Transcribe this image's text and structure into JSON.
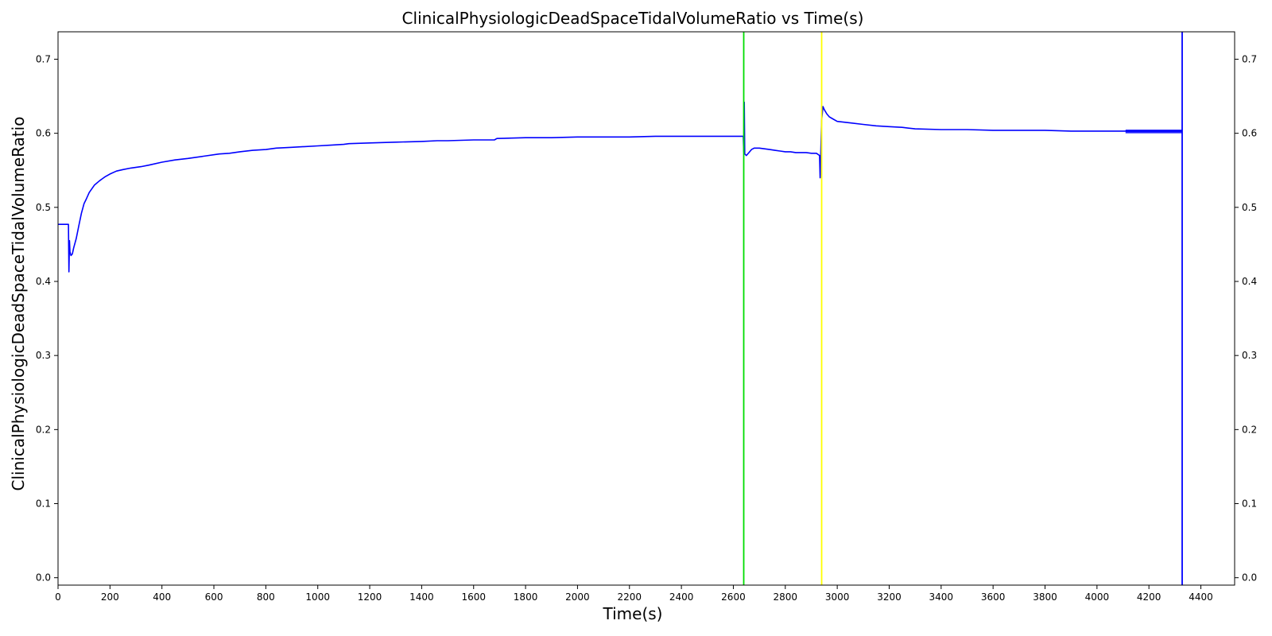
{
  "chart_data": {
    "type": "line",
    "title": "ClinicalPhysiologicDeadSpaceTidalVolumeRatio vs Time(s)",
    "xlabel": "Time(s)",
    "ylabel": "ClinicalPhysiologicDeadSpaceTidalVolumeRatio",
    "xlim": [
      0,
      4530
    ],
    "ylim": [
      -0.01,
      0.737
    ],
    "x_ticks": [
      0,
      200,
      400,
      600,
      800,
      1000,
      1200,
      1400,
      1600,
      1800,
      2000,
      2200,
      2400,
      2600,
      2800,
      3000,
      3200,
      3400,
      3600,
      3800,
      4000,
      4200,
      4400
    ],
    "x_tick_labels": [
      "0",
      "200",
      "400",
      "600",
      "800",
      "1000",
      "1200",
      "1400",
      "1600",
      "1800",
      "2000",
      "2200",
      "2400",
      "2600",
      "2800",
      "3000",
      "3200",
      "3400",
      "3600",
      "3800",
      "4000",
      "4200",
      "4400"
    ],
    "y_ticks": [
      0.0,
      0.1,
      0.2,
      0.3,
      0.4,
      0.5,
      0.6,
      0.7
    ],
    "y_tick_labels": [
      "0.0",
      "0.1",
      "0.2",
      "0.3",
      "0.4",
      "0.5",
      "0.6",
      "0.7"
    ],
    "right_axis_mirrored": true,
    "grid": false,
    "legend": "none",
    "series": [
      {
        "color": "#0000ff",
        "x": [
          0,
          40,
          42,
          44,
          46,
          50,
          55,
          60,
          70,
          80,
          90,
          100,
          110,
          120,
          140,
          160,
          180,
          200,
          225,
          250,
          280,
          320,
          350,
          400,
          450,
          500,
          560,
          620,
          660,
          700,
          750,
          800,
          840,
          900,
          1000,
          1050,
          1100,
          1120,
          1200,
          1300,
          1400,
          1460,
          1500,
          1600,
          1680,
          1690,
          1800,
          1900,
          2000,
          2100,
          2200,
          2300,
          2400,
          2500,
          2580,
          2638,
          2640,
          2642,
          2644,
          2650,
          2660,
          2670,
          2680,
          2700,
          2720,
          2740,
          2760,
          2780,
          2800,
          2820,
          2840,
          2860,
          2880,
          2900,
          2920,
          2932,
          2934,
          2940,
          2945,
          2950,
          2960,
          2970,
          2980,
          3000,
          3050,
          3100,
          3150,
          3200,
          3250,
          3300,
          3400,
          3500,
          3600,
          3700,
          3800,
          3900,
          4000,
          4050,
          4100,
          4110,
          4150,
          4200,
          4250,
          4300,
          4328
        ],
        "y": [
          0.477,
          0.477,
          0.413,
          0.455,
          0.44,
          0.435,
          0.437,
          0.445,
          0.458,
          0.475,
          0.492,
          0.505,
          0.512,
          0.52,
          0.53,
          0.536,
          0.541,
          0.545,
          0.549,
          0.551,
          0.553,
          0.555,
          0.557,
          0.561,
          0.564,
          0.566,
          0.569,
          0.572,
          0.573,
          0.575,
          0.577,
          0.578,
          0.58,
          0.581,
          0.583,
          0.584,
          0.585,
          0.586,
          0.587,
          0.588,
          0.589,
          0.59,
          0.59,
          0.591,
          0.591,
          0.593,
          0.594,
          0.594,
          0.595,
          0.595,
          0.595,
          0.596,
          0.596,
          0.596,
          0.596,
          0.596,
          0.575,
          0.642,
          0.572,
          0.57,
          0.574,
          0.578,
          0.58,
          0.58,
          0.579,
          0.578,
          0.577,
          0.576,
          0.575,
          0.575,
          0.574,
          0.574,
          0.574,
          0.573,
          0.573,
          0.57,
          0.54,
          0.618,
          0.636,
          0.632,
          0.626,
          0.622,
          0.62,
          0.616,
          0.614,
          0.612,
          0.61,
          0.609,
          0.608,
          0.606,
          0.605,
          0.605,
          0.604,
          0.604,
          0.604,
          0.603,
          0.603,
          0.603,
          0.603,
          0.603,
          0.603,
          0.603,
          0.603,
          0.603,
          0.603
        ]
      }
    ],
    "vertical_lines": [
      {
        "x": 2640,
        "color": "#00dd00"
      },
      {
        "x": 2940,
        "color": "#ffff00"
      },
      {
        "x": 4328,
        "color": "#0000ff"
      }
    ]
  }
}
